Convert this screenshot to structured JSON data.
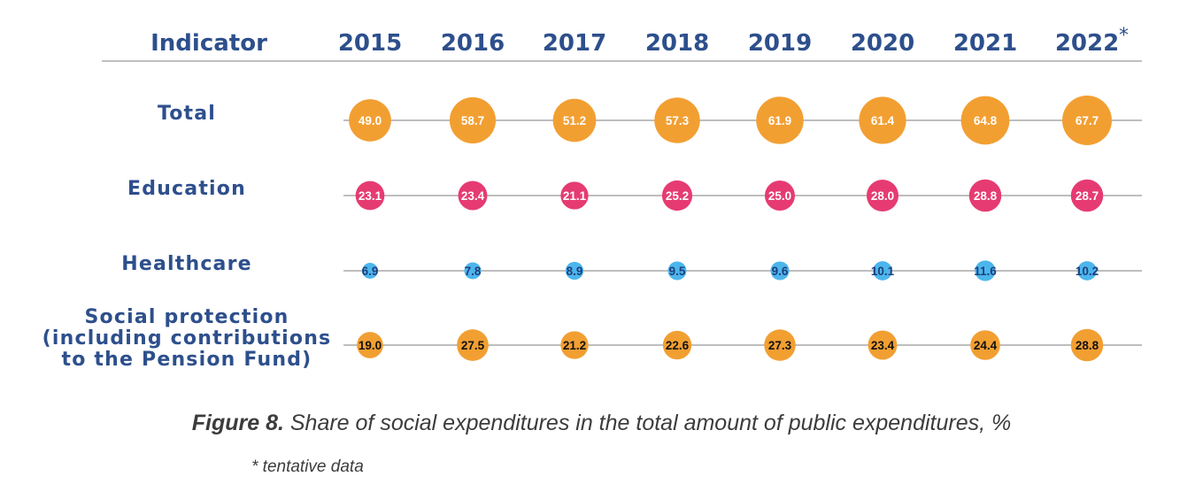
{
  "chart_data": {
    "type": "bubble",
    "header_label": "Indicator",
    "categories": [
      "2015",
      "2016",
      "2017",
      "2018",
      "2019",
      "2020",
      "2021",
      "2022"
    ],
    "category_markers": [
      "",
      "",
      "",
      "",
      "",
      "",
      "",
      "*"
    ],
    "series": [
      {
        "name": "Total",
        "name_lines": [
          "Total"
        ],
        "values": [
          49.0,
          58.7,
          51.2,
          57.3,
          61.9,
          61.4,
          64.8,
          67.7
        ],
        "labels": [
          "49.0",
          "58.7",
          "51.2",
          "57.3",
          "61.9",
          "61.4",
          "64.8",
          "67.7"
        ],
        "color": "#f29f32",
        "label_color": "#ffffff"
      },
      {
        "name": "Education",
        "name_lines": [
          "Education"
        ],
        "values": [
          23.1,
          23.4,
          21.1,
          25.2,
          25.0,
          28.0,
          28.8,
          28.7
        ],
        "labels": [
          "23.1",
          "23.4",
          "21.1",
          "25.2",
          "25.0",
          "28.0",
          "28.8",
          "28.7"
        ],
        "color": "#e63b72",
        "label_color": "#ffffff"
      },
      {
        "name": "Healthcare",
        "name_lines": [
          "Healthcare"
        ],
        "values": [
          6.9,
          7.8,
          8.9,
          9.5,
          9.6,
          10.1,
          11.6,
          10.2
        ],
        "labels": [
          "6.9",
          "7.8",
          "8.9",
          "9.5",
          "9.6",
          "10.1",
          "11.6",
          "10.2"
        ],
        "color": "#4cb6ec",
        "label_color": "#1f3e7c"
      },
      {
        "name": "Social protection (including contributions to the Pension Fund)",
        "name_lines": [
          "Social protection",
          "(including contributions",
          "to the Pension Fund)"
        ],
        "values": [
          19.0,
          27.5,
          21.2,
          22.6,
          27.3,
          23.4,
          24.4,
          28.8
        ],
        "labels": [
          "19.0",
          "27.5",
          "21.2",
          "22.6",
          "27.3",
          "23.4",
          "24.4",
          "28.8"
        ],
        "color": "#f29f32",
        "label_color": "#111111"
      }
    ]
  },
  "caption": {
    "label": "Figure 8.",
    "text": " Share of social expenditures in the total amount of public expenditures, %"
  },
  "footnote": "* tentative data"
}
